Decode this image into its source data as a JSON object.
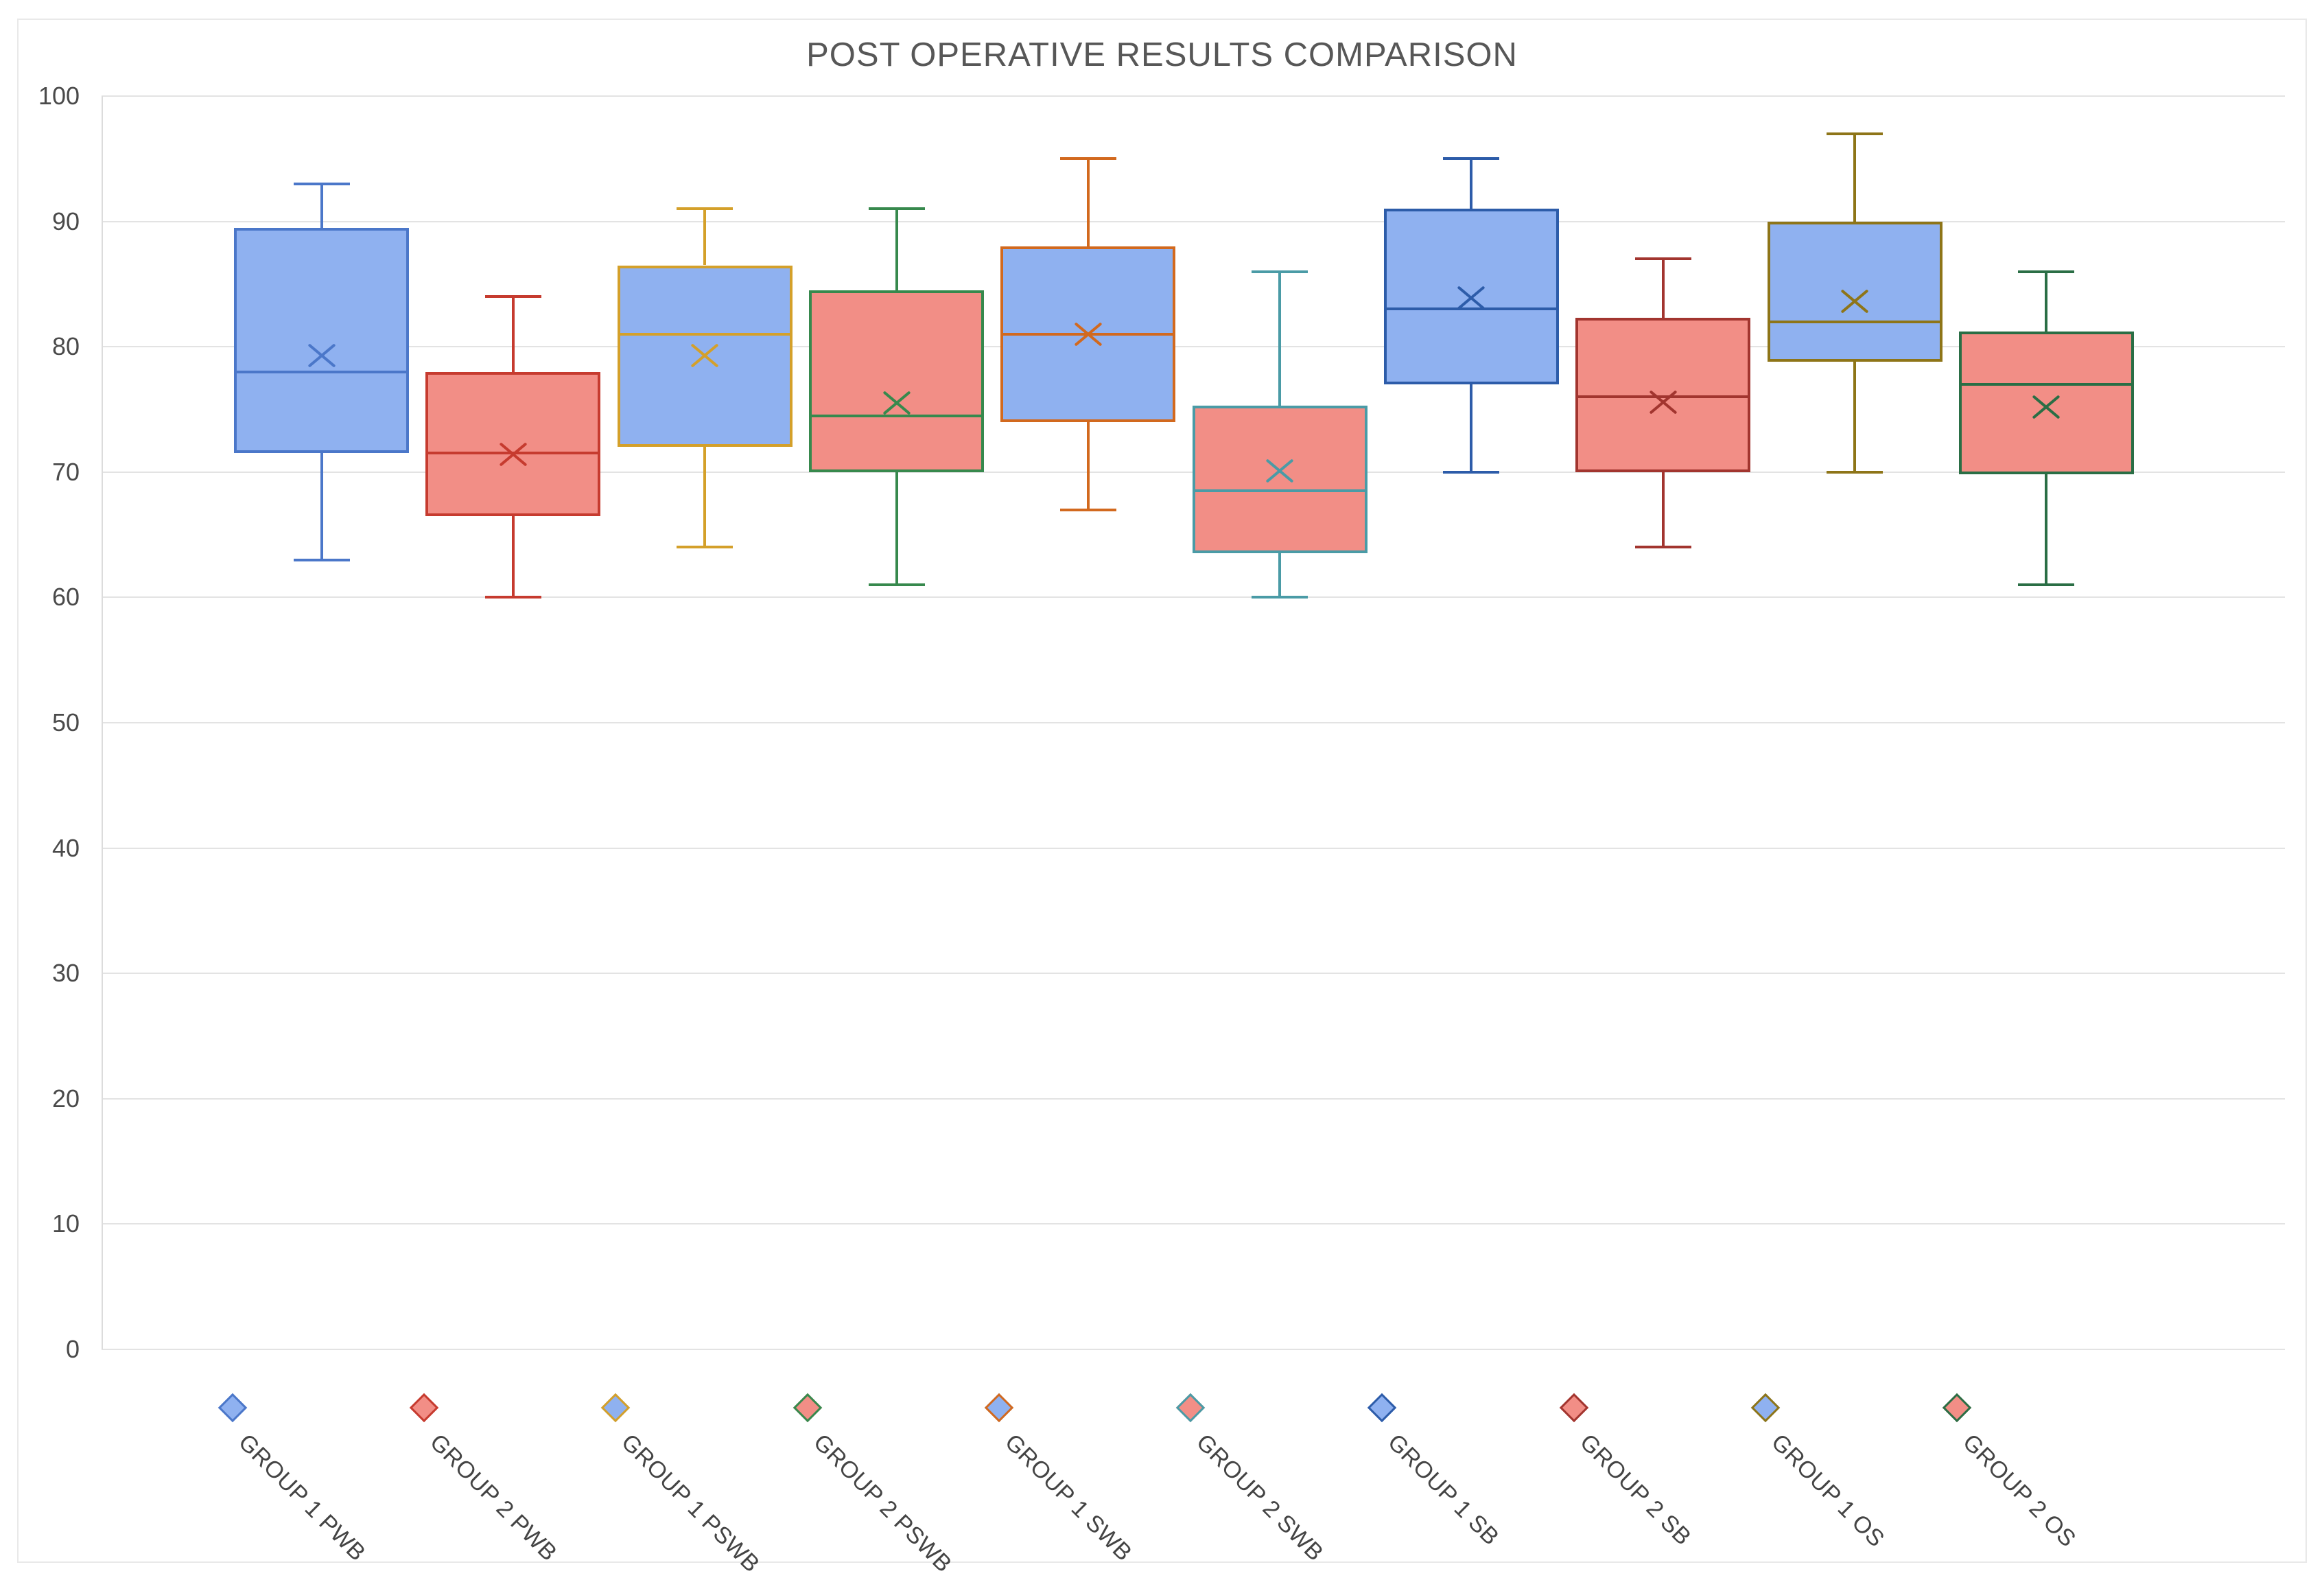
{
  "palette": {
    "background": "#FFFFFF",
    "frame_border": "#E9E9E9",
    "grid_line": "#E3E3E3",
    "axis_line": "#DCDCDC",
    "tick_text": "#4A4A4A",
    "label_text": "#444444",
    "title_text": "#575757",
    "blue_fill": "#8FB1F0",
    "red_fill": "#F28E86"
  },
  "chart_data": {
    "type": "box",
    "title": "POST OPERATIVE RESULTS COMPARISON",
    "xlabel": "",
    "ylabel": "",
    "ylim": [
      0,
      100
    ],
    "yticks": [
      0,
      10,
      20,
      30,
      40,
      50,
      60,
      70,
      80,
      90,
      100
    ],
    "grid": true,
    "legend_position": "bottom-diamond-markers-with-rotated-category-labels",
    "categories": [
      "GROUP 1 PWB",
      "GROUP 2 PWB",
      "GROUP 1 PSWB",
      "GROUP 2 PSWB",
      "GROUP 1 SWB",
      "GROUP 2 SWB",
      "GROUP 1 SB",
      "GROUP 2 SB",
      "GROUP 1 OS",
      "GROUP 2 OS"
    ],
    "series": [
      {
        "label": "GROUP 1 PWB",
        "fill": "#8FB1F0",
        "stroke": "#4B77C9",
        "min": 63,
        "q1": 71.5,
        "median": 78,
        "q3": 89.5,
        "max": 93,
        "mean": 79.3
      },
      {
        "label": "GROUP 2 PWB",
        "fill": "#F28E86",
        "stroke": "#C63B2F",
        "min": 60,
        "q1": 66.5,
        "median": 71.5,
        "q3": 78,
        "max": 84,
        "mean": 71.4
      },
      {
        "label": "GROUP 1 PSWB",
        "fill": "#8FB1F0",
        "stroke": "#D4A02A",
        "min": 64,
        "q1": 72,
        "median": 81,
        "q3": 86.5,
        "max": 91,
        "mean": 79.3
      },
      {
        "label": "GROUP 2 PSWB",
        "fill": "#F28E86",
        "stroke": "#37894D",
        "min": 61,
        "q1": 70,
        "median": 74.5,
        "q3": 84.5,
        "max": 91,
        "mean": 75.5
      },
      {
        "label": "GROUP 1 SWB",
        "fill": "#8FB1F0",
        "stroke": "#D2691E",
        "min": 67,
        "q1": 74,
        "median": 81,
        "q3": 88,
        "max": 95,
        "mean": 81
      },
      {
        "label": "GROUP 2 SWB",
        "fill": "#F28E86",
        "stroke": "#4A9BA6",
        "min": 60,
        "q1": 63.5,
        "median": 68.5,
        "q3": 75.3,
        "max": 86,
        "mean": 70.1
      },
      {
        "label": "GROUP 1 SB",
        "fill": "#8FB1F0",
        "stroke": "#2D5CA9",
        "min": 70,
        "q1": 77,
        "median": 83,
        "q3": 91,
        "max": 95,
        "mean": 83.9
      },
      {
        "label": "GROUP 2 SB",
        "fill": "#F28E86",
        "stroke": "#A2352F",
        "min": 64,
        "q1": 70,
        "median": 76,
        "q3": 82.3,
        "max": 87,
        "mean": 75.6
      },
      {
        "label": "GROUP 1 OS",
        "fill": "#8FB1F0",
        "stroke": "#8E7518",
        "min": 70,
        "q1": 78.8,
        "median": 82,
        "q3": 90,
        "max": 97,
        "mean": 83.6
      },
      {
        "label": "GROUP 2 OS",
        "fill": "#F28E86",
        "stroke": "#2A6E45",
        "min": 61,
        "q1": 69.8,
        "median": 77,
        "q3": 81.2,
        "max": 86,
        "mean": 75.2
      }
    ]
  }
}
